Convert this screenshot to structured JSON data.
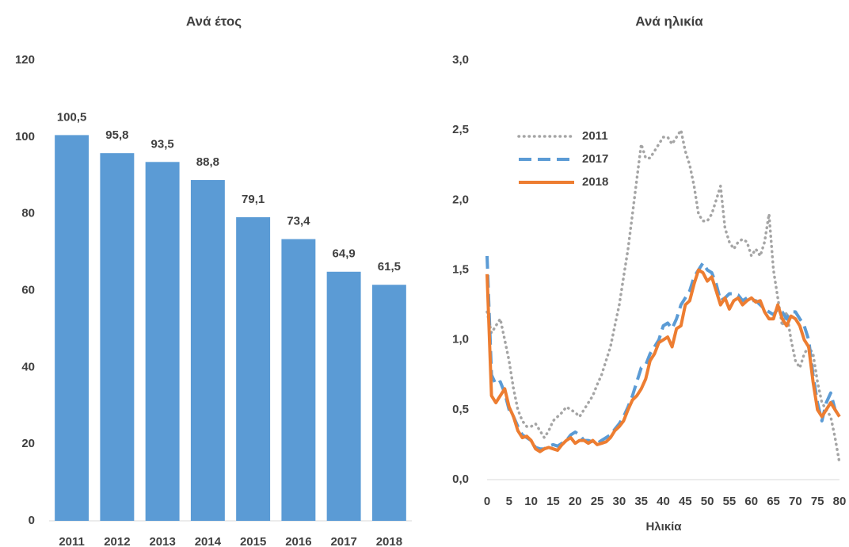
{
  "chart_data": [
    {
      "type": "bar",
      "title": "Ανά έτος",
      "categories": [
        "2011",
        "2012",
        "2013",
        "2014",
        "2015",
        "2016",
        "2017",
        "2018"
      ],
      "values": [
        100.5,
        95.8,
        93.5,
        88.8,
        79.1,
        73.4,
        64.9,
        61.5
      ],
      "value_labels": [
        "100,5",
        "95,8",
        "93,5",
        "88,8",
        "79,1",
        "73,4",
        "64,9",
        "61,5"
      ],
      "color": "#5b9bd5",
      "ylim": [
        0,
        120
      ],
      "yticks": [
        0,
        20,
        40,
        60,
        80,
        100,
        120
      ],
      "grid": false
    },
    {
      "type": "line",
      "title": "Ανά ηλικία",
      "xlabel": "Ηλικία",
      "x": [
        0,
        1,
        2,
        3,
        4,
        5,
        6,
        7,
        8,
        9,
        10,
        11,
        12,
        13,
        14,
        15,
        16,
        17,
        18,
        19,
        20,
        21,
        22,
        23,
        24,
        25,
        26,
        27,
        28,
        29,
        30,
        31,
        32,
        33,
        34,
        35,
        36,
        37,
        38,
        39,
        40,
        41,
        42,
        43,
        44,
        45,
        46,
        47,
        48,
        49,
        50,
        51,
        52,
        53,
        54,
        55,
        56,
        57,
        58,
        59,
        60,
        61,
        62,
        63,
        64,
        65,
        66,
        67,
        68,
        69,
        70,
        71,
        72,
        73,
        74,
        75,
        76,
        77,
        78,
        79,
        80
      ],
      "xlim": [
        0,
        80
      ],
      "xticks": [
        0,
        5,
        10,
        15,
        20,
        25,
        30,
        35,
        40,
        45,
        50,
        55,
        60,
        65,
        70,
        75,
        80
      ],
      "ylim": [
        0,
        3
      ],
      "yticks": [
        {
          "value": 0,
          "label": "0,0"
        },
        {
          "value": 0.5,
          "label": "0,5"
        },
        {
          "value": 1,
          "label": "1,0"
        },
        {
          "value": 1.5,
          "label": "1,5"
        },
        {
          "value": 2,
          "label": "2,0"
        },
        {
          "value": 2.5,
          "label": "2,5"
        },
        {
          "value": 3,
          "label": "3,0"
        }
      ],
      "grid": false,
      "legend": "upper left",
      "series": [
        {
          "name": "2011",
          "color": "#a5a5a5",
          "dash": "dotted",
          "values": [
            1.2,
            1.05,
            1.1,
            1.15,
            1.0,
            0.85,
            0.65,
            0.5,
            0.42,
            0.38,
            0.38,
            0.4,
            0.35,
            0.3,
            0.35,
            0.42,
            0.45,
            0.48,
            0.52,
            0.5,
            0.48,
            0.45,
            0.5,
            0.55,
            0.6,
            0.68,
            0.75,
            0.85,
            0.95,
            1.1,
            1.25,
            1.45,
            1.65,
            1.9,
            2.15,
            2.4,
            2.3,
            2.3,
            2.35,
            2.4,
            2.45,
            2.45,
            2.4,
            2.45,
            2.5,
            2.35,
            2.25,
            2.1,
            1.9,
            1.85,
            1.85,
            1.9,
            2.0,
            2.1,
            1.8,
            1.7,
            1.65,
            1.7,
            1.72,
            1.7,
            1.6,
            1.65,
            1.6,
            1.7,
            1.9,
            1.5,
            1.3,
            1.1,
            1.2,
            1.0,
            0.85,
            0.8,
            0.9,
            0.95,
            0.9,
            0.7,
            0.55,
            0.5,
            0.45,
            0.3,
            0.12
          ]
        },
        {
          "name": "2017",
          "color": "#5b9bd5",
          "dash": "dashed",
          "values": [
            1.6,
            0.75,
            0.68,
            0.7,
            0.62,
            0.5,
            0.45,
            0.38,
            0.32,
            0.3,
            0.28,
            0.23,
            0.22,
            0.22,
            0.24,
            0.25,
            0.24,
            0.26,
            0.28,
            0.32,
            0.34,
            0.32,
            0.28,
            0.28,
            0.27,
            0.26,
            0.28,
            0.3,
            0.32,
            0.36,
            0.4,
            0.45,
            0.52,
            0.6,
            0.7,
            0.8,
            0.82,
            0.9,
            0.95,
            1.0,
            1.1,
            1.12,
            1.08,
            1.15,
            1.25,
            1.3,
            1.35,
            1.45,
            1.5,
            1.55,
            1.5,
            1.48,
            1.4,
            1.28,
            1.3,
            1.33,
            1.33,
            1.32,
            1.28,
            1.3,
            1.28,
            1.28,
            1.25,
            1.22,
            1.2,
            1.18,
            1.22,
            1.2,
            1.15,
            1.2,
            1.2,
            1.15,
            1.1,
            1.0,
            0.75,
            0.55,
            0.42,
            0.55,
            0.62,
            0.5,
            0.45
          ]
        },
        {
          "name": "2018",
          "color": "#ed7d31",
          "dash": "solid",
          "values": [
            1.47,
            0.6,
            0.55,
            0.6,
            0.65,
            0.52,
            0.45,
            0.35,
            0.3,
            0.31,
            0.28,
            0.22,
            0.2,
            0.22,
            0.23,
            0.22,
            0.21,
            0.25,
            0.28,
            0.3,
            0.26,
            0.28,
            0.28,
            0.26,
            0.28,
            0.25,
            0.26,
            0.27,
            0.3,
            0.35,
            0.38,
            0.42,
            0.5,
            0.57,
            0.6,
            0.65,
            0.72,
            0.85,
            0.9,
            0.98,
            1.0,
            1.02,
            0.95,
            1.08,
            1.1,
            1.25,
            1.28,
            1.4,
            1.5,
            1.48,
            1.42,
            1.45,
            1.35,
            1.25,
            1.3,
            1.22,
            1.28,
            1.3,
            1.25,
            1.28,
            1.3,
            1.27,
            1.28,
            1.2,
            1.15,
            1.15,
            1.25,
            1.15,
            1.1,
            1.17,
            1.15,
            1.1,
            1.0,
            0.95,
            0.7,
            0.5,
            0.45,
            0.5,
            0.55,
            0.5,
            0.45
          ]
        }
      ]
    }
  ]
}
